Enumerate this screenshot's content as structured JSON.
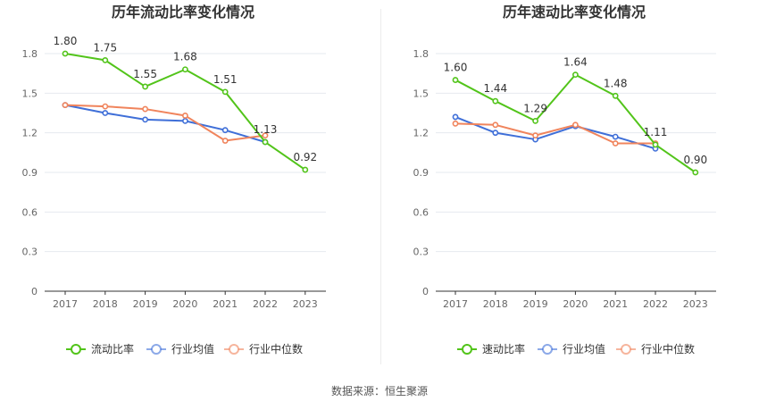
{
  "colors": {
    "ratio": "#52c41a",
    "industry_avg": "#3f6fd8",
    "industry_median": "#f0845c",
    "axis": "#333333",
    "grid": "#e6e9ef",
    "tick_text": "#666666",
    "label_text": "#333333"
  },
  "legend_icon": "circle-line-icon",
  "source_text": "数据来源：恒生聚源",
  "chart_data": [
    {
      "type": "line",
      "title": "历年流动比率变化情况",
      "categories": [
        "2017",
        "2018",
        "2019",
        "2020",
        "2021",
        "2022",
        "2023"
      ],
      "ylim": [
        0,
        1.8
      ],
      "yticks": [
        "0",
        "0.3",
        "0.6",
        "0.9",
        "1.2",
        "1.5",
        "1.8"
      ],
      "grid": true,
      "legend_position": "bottom",
      "series": [
        {
          "name": "流动比率",
          "key": "ratio",
          "values": [
            1.8,
            1.75,
            1.55,
            1.68,
            1.51,
            1.13,
            0.92
          ],
          "labels": [
            "1.80",
            "1.75",
            "1.55",
            "1.68",
            "1.51",
            "1.13",
            "0.92"
          ]
        },
        {
          "name": "行业均值",
          "key": "industry_avg",
          "values": [
            1.41,
            1.35,
            1.3,
            1.29,
            1.22,
            1.13,
            null
          ]
        },
        {
          "name": "行业中位数",
          "key": "industry_median",
          "values": [
            1.41,
            1.4,
            1.38,
            1.33,
            1.14,
            1.18,
            null
          ]
        }
      ]
    },
    {
      "type": "line",
      "title": "历年速动比率变化情况",
      "categories": [
        "2017",
        "2018",
        "2019",
        "2020",
        "2021",
        "2022",
        "2023"
      ],
      "ylim": [
        0,
        1.8
      ],
      "yticks": [
        "0",
        "0.3",
        "0.6",
        "0.9",
        "1.2",
        "1.5",
        "1.8"
      ],
      "grid": true,
      "legend_position": "bottom",
      "series": [
        {
          "name": "速动比率",
          "key": "ratio",
          "values": [
            1.6,
            1.44,
            1.29,
            1.64,
            1.48,
            1.11,
            0.9
          ],
          "labels": [
            "1.60",
            "1.44",
            "1.29",
            "1.64",
            "1.48",
            "1.11",
            "0.90"
          ]
        },
        {
          "name": "行业均值",
          "key": "industry_avg",
          "values": [
            1.32,
            1.2,
            1.15,
            1.25,
            1.17,
            1.08,
            null
          ]
        },
        {
          "name": "行业中位数",
          "key": "industry_median",
          "values": [
            1.27,
            1.26,
            1.18,
            1.26,
            1.12,
            1.12,
            null
          ]
        }
      ]
    }
  ]
}
